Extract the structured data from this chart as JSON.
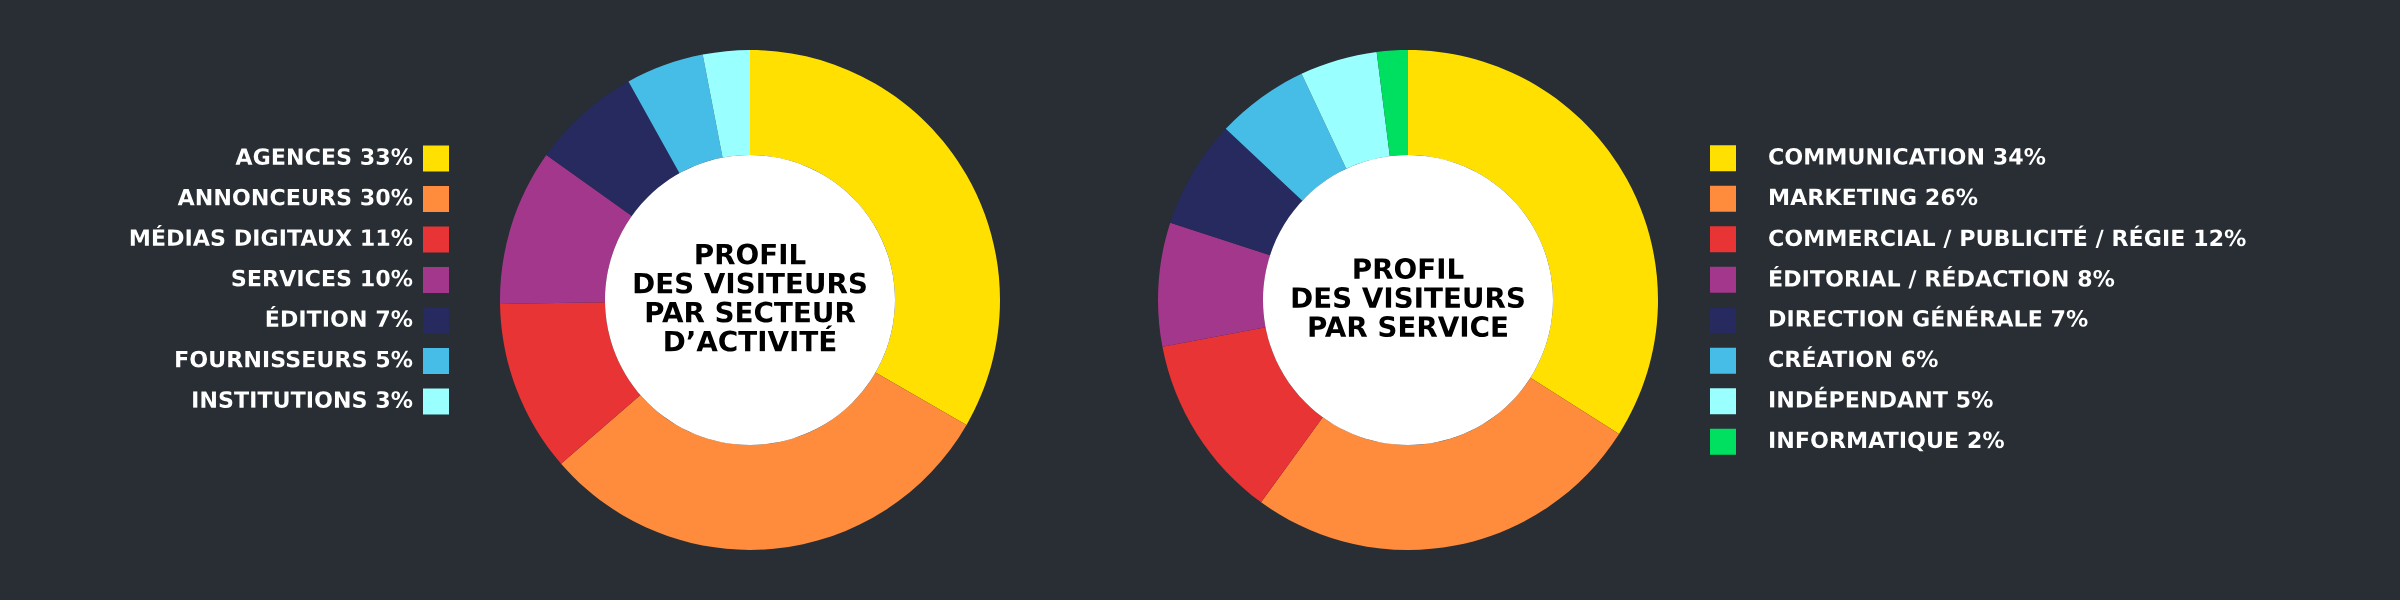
{
  "chart_data": [
    {
      "type": "donut",
      "title": "PROFIL\nDES VISITEURS\nPAR SECTEUR\nD’ACTIVITÉ",
      "legend": "left",
      "categories": [
        "AGENCES",
        "ANNONCEURS",
        "MÉDIAS DIGITAUX",
        "SERVICES",
        "ÉDITION",
        "FOURNISSEURS",
        "INSTITUTIONS"
      ],
      "values": [
        33,
        30,
        11,
        10,
        7,
        5,
        3
      ],
      "value_labels": [
        "33%",
        "30%",
        "11%",
        "10%",
        "7%",
        "5%",
        "3%"
      ],
      "colors": [
        "#ffe000",
        "#ff8c3c",
        "#e83434",
        "#a3378c",
        "#262a5e",
        "#45bde6",
        "#99ffff"
      ]
    },
    {
      "type": "donut",
      "title": "PROFIL\nDES VISITEURS\nPAR SERVICE",
      "legend": "right",
      "categories": [
        "COMMUNICATION",
        "MARKETING",
        "COMMERCIAL / PUBLICITÉ / RÉGIE",
        "ÉDITORIAL / RÉDACTION",
        "DIRECTION GÉNÉRALE",
        "CRÉATION",
        "INDÉPENDANT",
        "INFORMATIQUE"
      ],
      "values": [
        34,
        26,
        12,
        8,
        7,
        6,
        5,
        2
      ],
      "value_labels": [
        "34%",
        "26%",
        "12%",
        "8%",
        "7%",
        "6%",
        "5%",
        "2%"
      ],
      "colors": [
        "#ffe000",
        "#ff8c3c",
        "#e83434",
        "#a3378c",
        "#262a5e",
        "#45bde6",
        "#99ffff",
        "#00e060"
      ]
    }
  ]
}
